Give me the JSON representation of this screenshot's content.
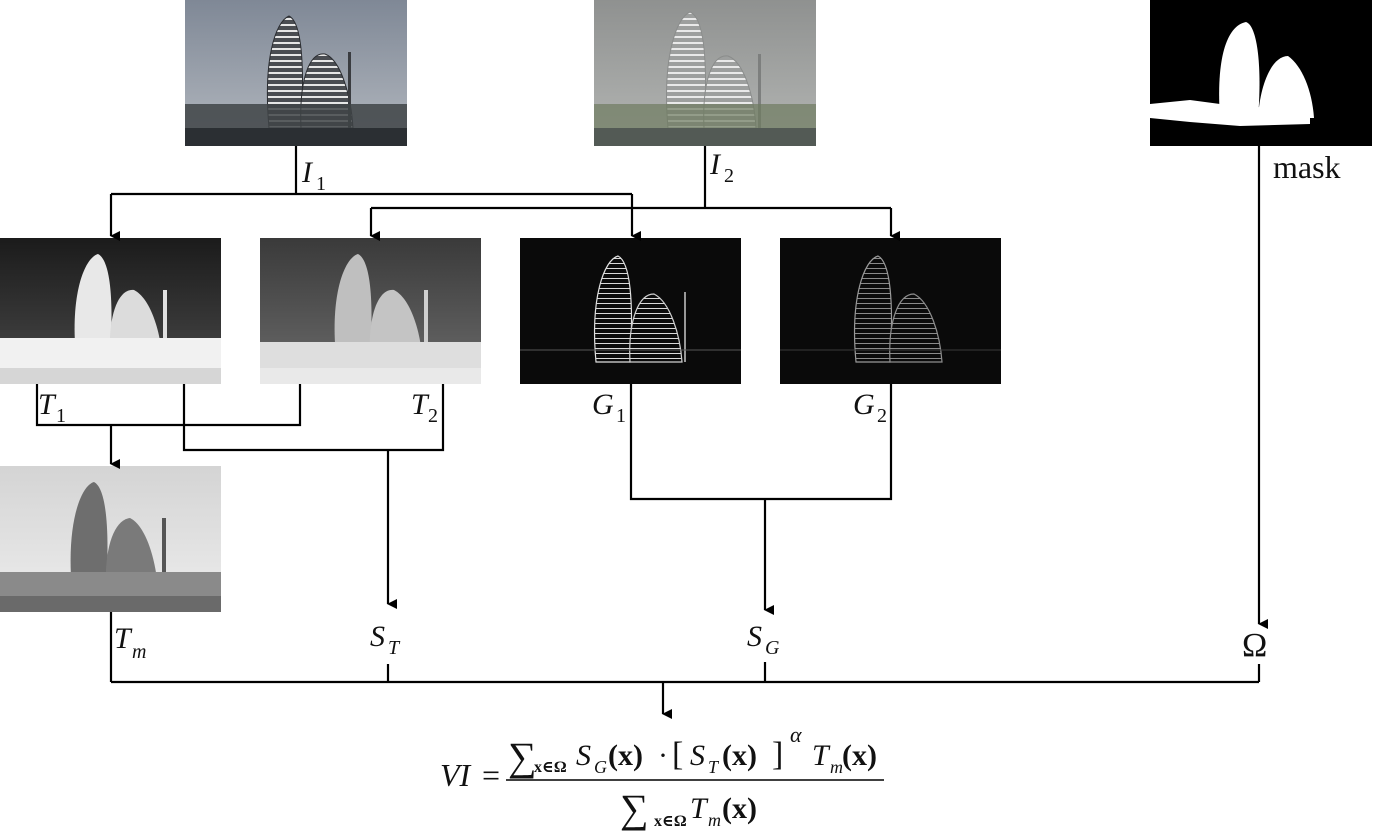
{
  "labels": {
    "I1": {
      "base": "I",
      "sub": "1"
    },
    "I2": {
      "base": "I",
      "sub": "2"
    },
    "mask": "mask",
    "T1": {
      "base": "T",
      "sub": "1"
    },
    "T2": {
      "base": "T",
      "sub": "2"
    },
    "G1": {
      "base": "G",
      "sub": "1"
    },
    "G2": {
      "base": "G",
      "sub": "2"
    },
    "Tm": {
      "base": "T",
      "sub": "m"
    },
    "ST": {
      "base": "S",
      "sub": "T"
    },
    "SG": {
      "base": "S",
      "sub": "G"
    },
    "Omega": "Ω"
  },
  "formula": {
    "lhs": "VI",
    "eq": "=",
    "sum": "∑",
    "sum_index": "x∈Ω",
    "num_SG": {
      "base": "S",
      "sub": "G"
    },
    "num_ST": {
      "base": "S",
      "sub": "T"
    },
    "num_Tm": {
      "base": "T",
      "sub": "m"
    },
    "arg": "(x)",
    "dot": "·",
    "lbracket": "[",
    "rbracket": "]",
    "exponent": "α",
    "den_Tm": {
      "base": "T",
      "sub": "m"
    }
  },
  "colors": {
    "wire": "#000000",
    "photo_sky_I1": "#8e96a2",
    "photo_sky_I2": "#9b9d9c",
    "mask_bg": "#000000",
    "mask_fg": "#ffffff"
  }
}
